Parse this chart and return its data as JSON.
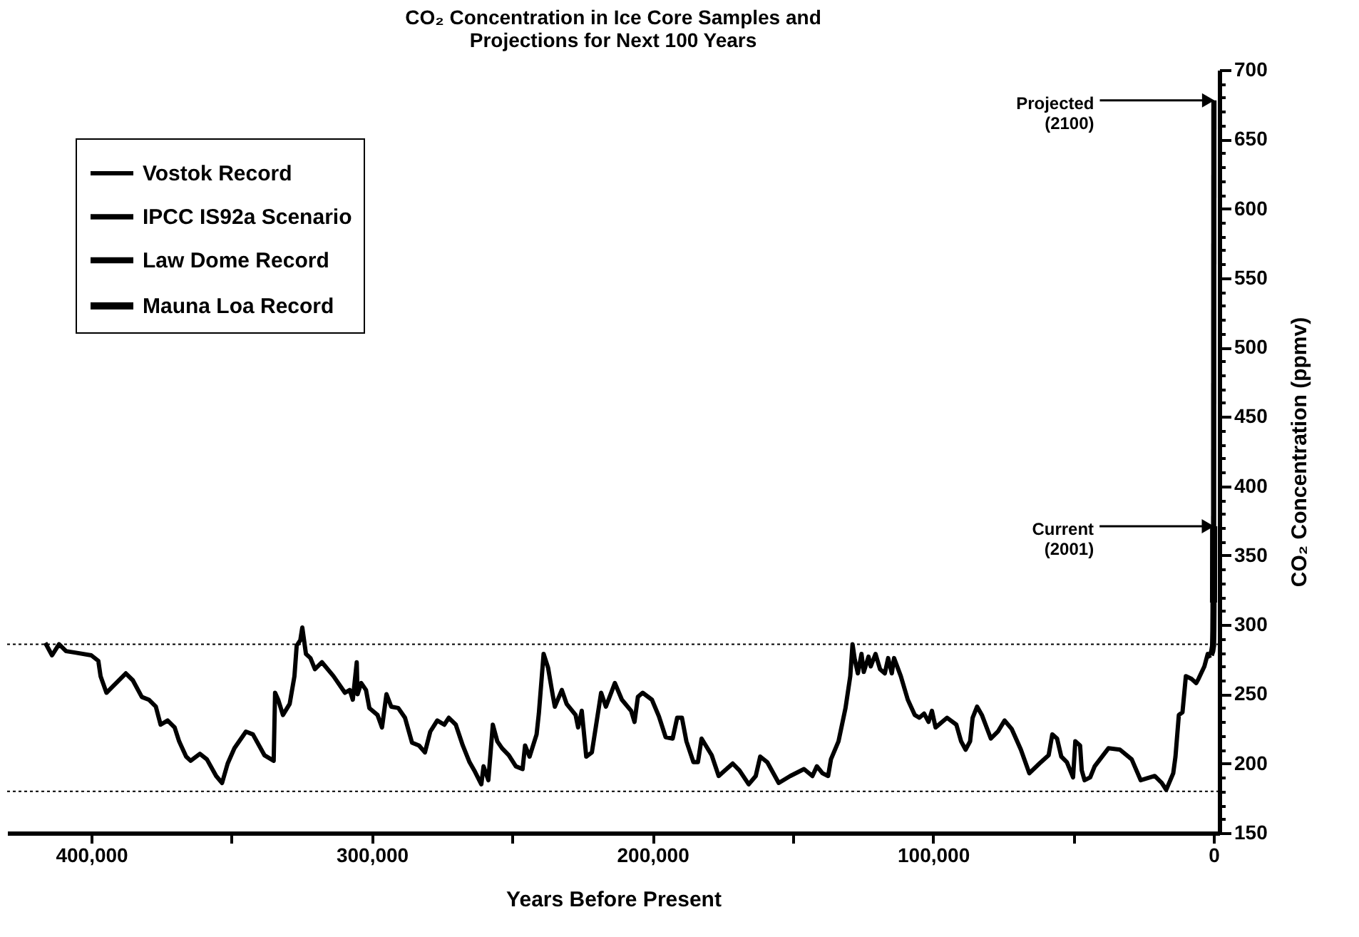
{
  "chart_data": {
    "type": "line",
    "title": "CO₂ Concentration in Ice Core Samples and Projections for Next 100 Years",
    "xlabel": "Years Before Present",
    "ylabel": "CO₂ Concentration (ppmv)",
    "xlim": [
      430000,
      -2000
    ],
    "ylim": [
      150,
      700
    ],
    "xticks": [
      {
        "value": 400000,
        "label": "400,000"
      },
      {
        "value": 350000,
        "label": null
      },
      {
        "value": 300000,
        "label": "300,000"
      },
      {
        "value": 250000,
        "label": null
      },
      {
        "value": 200000,
        "label": "200,000"
      },
      {
        "value": 150000,
        "label": null
      },
      {
        "value": 100000,
        "label": "100,000"
      },
      {
        "value": 50000,
        "label": null
      },
      0
    ],
    "yticks": [
      150,
      {
        "value": 160,
        "label": null
      },
      {
        "value": 170,
        "label": null
      },
      {
        "value": 180,
        "label": null
      },
      {
        "value": 190,
        "label": null
      },
      200,
      {
        "value": 210,
        "label": null
      },
      {
        "value": 220,
        "label": null
      },
      {
        "value": 230,
        "label": null
      },
      {
        "value": 240,
        "label": null
      },
      250,
      {
        "value": 260,
        "label": null
      },
      {
        "value": 270,
        "label": null
      },
      {
        "value": 280,
        "label": null
      },
      {
        "value": 290,
        "label": null
      },
      300,
      {
        "value": 310,
        "label": null
      },
      {
        "value": 320,
        "label": null
      },
      {
        "value": 330,
        "label": null
      },
      {
        "value": 340,
        "label": null
      },
      350,
      {
        "value": 360,
        "label": null
      },
      {
        "value": 370,
        "label": null
      },
      {
        "value": 380,
        "label": null
      },
      {
        "value": 390,
        "label": null
      },
      400,
      {
        "value": 410,
        "label": null
      },
      {
        "value": 420,
        "label": null
      },
      {
        "value": 430,
        "label": null
      },
      {
        "value": 440,
        "label": null
      },
      450,
      {
        "value": 460,
        "label": null
      },
      {
        "value": 470,
        "label": null
      },
      {
        "value": 480,
        "label": null
      },
      {
        "value": 490,
        "label": null
      },
      500,
      {
        "value": 510,
        "label": null
      },
      {
        "value": 520,
        "label": null
      },
      {
        "value": 530,
        "label": null
      },
      {
        "value": 540,
        "label": null
      },
      550,
      {
        "value": 560,
        "label": null
      },
      {
        "value": 570,
        "label": null
      },
      {
        "value": 580,
        "label": null
      },
      {
        "value": 590,
        "label": null
      },
      600,
      {
        "value": 610,
        "label": null
      },
      {
        "value": 620,
        "label": null
      },
      {
        "value": 630,
        "label": null
      },
      {
        "value": 640,
        "label": null
      },
      650,
      {
        "value": 660,
        "label": null
      },
      {
        "value": 670,
        "label": null
      },
      {
        "value": 680,
        "label": null
      },
      {
        "value": 690,
        "label": null
      },
      700
    ],
    "grid": false,
    "legend": "top left",
    "line_style": "solid",
    "series": [
      {
        "name": "Vostok Record",
        "color": "#000000",
        "x": [
          416400,
          414000,
          411500,
          409000,
          405800,
          400000,
          397500,
          396700,
          394600,
          392600,
          387700,
          385200,
          382000,
          379500,
          377000,
          375300,
          372800,
          370300,
          368700,
          366200,
          364600,
          361300,
          358800,
          355500,
          353400,
          351400,
          349000,
          344900,
          342400,
          338300,
          335000,
          334500,
          333400,
          331700,
          329300,
          327600,
          326800,
          325500,
          324800,
          323500,
          321900,
          320300,
          317800,
          313700,
          309600,
          307900,
          306800,
          305400,
          305100,
          303800,
          302100,
          300900,
          298000,
          296400,
          294800,
          293100,
          290600,
          288200,
          285700,
          283200,
          281100,
          279200,
          276700,
          274200,
          272600,
          270100,
          267600,
          265200,
          263500,
          261000,
          260200,
          258500,
          256900,
          255300,
          253600,
          251200,
          248700,
          246300,
          245400,
          243800,
          241300,
          240500,
          238800,
          237200,
          235600,
          234800,
          232300,
          230600,
          227400,
          226500,
          225200,
          223600,
          221600,
          218300,
          216600,
          213400,
          210900,
          207600,
          206400,
          205200,
          203500,
          200200,
          197700,
          195300,
          192800,
          191200,
          189500,
          187900,
          185400,
          183800,
          182500,
          178900,
          176400,
          171400,
          169000,
          165700,
          163200,
          161600,
          159100,
          155000,
          150900,
          146000,
          143000,
          141400,
          139400,
          137400,
          136400,
          133700,
          131200,
          129500,
          128700,
          127900,
          126800,
          125500,
          124700,
          123000,
          122200,
          120500,
          118900,
          117200,
          116000,
          114700,
          113900,
          111500,
          109000,
          106500,
          104900,
          103200,
          101600,
          100400,
          99100,
          95000,
          91700,
          90000,
          88400,
          86800,
          85900,
          84300,
          82600,
          79400,
          76900,
          74500,
          72000,
          68700,
          65700,
          62100,
          58800,
          57500,
          55800,
          54300,
          52300,
          50100,
          49300,
          47600,
          47000,
          46000,
          44000,
          42400,
          37500,
          33400,
          29200,
          26000,
          21000,
          18500,
          16900,
          14400,
          13600,
          12400,
          11100,
          9900,
          7900,
          6200,
          5400,
          3300,
          2100,
          1300
        ],
        "values": [
          287,
          278,
          286,
          281,
          280,
          278,
          274,
          263,
          251,
          255,
          265,
          260,
          248,
          246,
          241,
          228,
          231,
          226,
          216,
          205,
          202,
          207,
          203,
          191,
          186,
          200,
          211,
          223,
          221,
          206,
          202,
          251,
          246,
          235,
          243,
          263,
          285,
          289,
          298,
          279,
          276,
          268,
          273,
          263,
          251,
          253,
          246,
          273,
          250,
          258,
          253,
          240,
          235,
          226,
          250,
          241,
          240,
          233,
          215,
          213,
          208,
          223,
          231,
          228,
          233,
          228,
          213,
          201,
          195,
          185,
          198,
          188,
          228,
          216,
          211,
          206,
          198,
          196,
          213,
          205,
          221,
          236,
          279,
          269,
          250,
          241,
          253,
          243,
          235,
          226,
          238,
          205,
          208,
          251,
          241,
          258,
          246,
          238,
          230,
          248,
          251,
          246,
          234,
          219,
          218,
          233,
          233,
          216,
          201,
          201,
          218,
          206,
          191,
          200,
          195,
          185,
          191,
          205,
          201,
          186,
          191,
          196,
          191,
          198,
          193,
          191,
          203,
          216,
          240,
          263,
          286,
          275,
          265,
          279,
          266,
          277,
          270,
          279,
          268,
          265,
          276,
          265,
          276,
          263,
          246,
          235,
          233,
          236,
          230,
          238,
          226,
          233,
          228,
          216,
          210,
          216,
          233,
          241,
          235,
          218,
          223,
          231,
          225,
          210,
          193,
          200,
          206,
          221,
          218,
          205,
          201,
          190,
          216,
          213,
          195,
          188,
          190,
          198,
          211,
          210,
          203,
          188,
          191,
          186,
          181,
          193,
          205,
          235,
          237,
          263,
          261,
          258,
          261,
          270,
          279,
          276
        ]
      },
      {
        "name": "IPCC IS92a Scenario",
        "color": "#000000",
        "x": [
          0,
          -99
        ],
        "values": [
          371,
          678
        ]
      },
      {
        "name": "Law Dome Record",
        "color": "#000000",
        "x": [
          1000,
          500,
          200,
          100,
          50,
          23
        ],
        "values": [
          278,
          281,
          285,
          296,
          311,
          331
        ]
      },
      {
        "name": "Mauna Loa Record",
        "color": "#000000",
        "x": [
          42,
          30,
          20,
          10,
          0
        ],
        "values": [
          316,
          326,
          339,
          354,
          371
        ]
      }
    ],
    "ref_lines": [
      {
        "axis": "y",
        "value": 286,
        "color": "#000000",
        "line_style": "dotted"
      },
      {
        "axis": "y",
        "value": 180,
        "color": "#000000",
        "line_style": "dotted"
      }
    ],
    "annotations": [
      {
        "text": "Projected (2100)",
        "x": -99,
        "y": 678
      },
      {
        "text": "Current (2001)",
        "x": 0,
        "y": 371
      }
    ]
  }
}
